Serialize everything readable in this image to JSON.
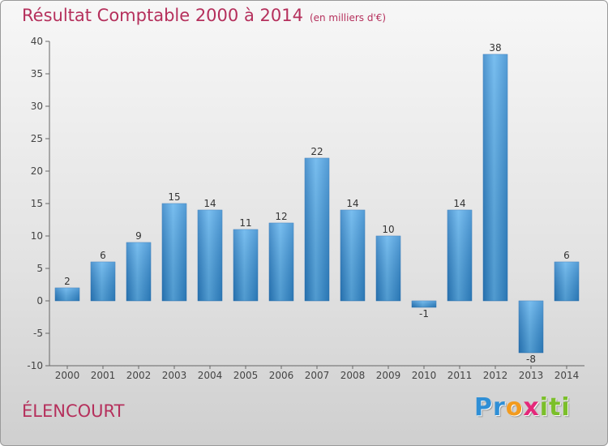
{
  "chart_data": {
    "type": "bar",
    "title": "Résultat Comptable 2000 à 2014",
    "subtitle": "(en milliers d'€)",
    "categories": [
      "2000",
      "2001",
      "2002",
      "2003",
      "2004",
      "2005",
      "2006",
      "2007",
      "2008",
      "2009",
      "2010",
      "2011",
      "2012",
      "2013",
      "2014"
    ],
    "values": [
      2,
      6,
      9,
      15,
      14,
      11,
      12,
      22,
      14,
      10,
      -1,
      14,
      38,
      -8,
      6
    ],
    "ylim": [
      -10,
      40
    ],
    "yticks": [
      -10,
      -5,
      0,
      5,
      10,
      15,
      20,
      25,
      30,
      35,
      40
    ],
    "grid": false,
    "xlabel": "",
    "ylabel": "",
    "bar_color": "#3a8fd2"
  },
  "footer": {
    "commune": "ÉLENCOURT",
    "brand_letters": [
      {
        "char": "P",
        "color": "#2f8fd6"
      },
      {
        "char": "r",
        "color": "#2f8fd6"
      },
      {
        "char": "o",
        "color": "#f29b1f"
      },
      {
        "char": "x",
        "color": "#e4287a"
      },
      {
        "char": "i",
        "color": "#7bbf2a"
      },
      {
        "char": "t",
        "color": "#7bbf2a"
      },
      {
        "char": "i",
        "color": "#7bbf2a"
      }
    ]
  }
}
